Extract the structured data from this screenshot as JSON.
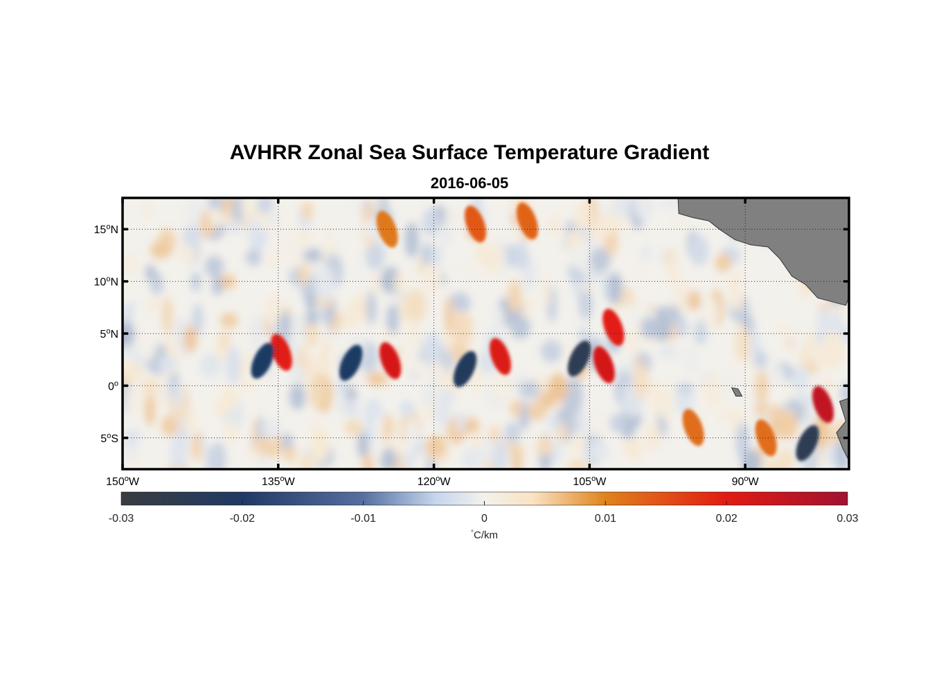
{
  "title": "AVHRR Zonal Sea Surface Temperature Gradient",
  "subtitle": "2016-06-05",
  "map": {
    "lon_range": [
      -150,
      -80
    ],
    "lat_range": [
      -8,
      18
    ],
    "grid": true,
    "lat_ticks": [
      {
        "value": 15,
        "num": "15",
        "hemi": "N"
      },
      {
        "value": 10,
        "num": "10",
        "hemi": "N"
      },
      {
        "value": 5,
        "num": "5",
        "hemi": "N"
      },
      {
        "value": 0,
        "num": "0",
        "hemi": ""
      },
      {
        "value": -5,
        "num": "5",
        "hemi": "S"
      }
    ],
    "lon_ticks": [
      {
        "value": -150,
        "num": "150",
        "hemi": "W"
      },
      {
        "value": -135,
        "num": "135",
        "hemi": "W"
      },
      {
        "value": -120,
        "num": "120",
        "hemi": "W"
      },
      {
        "value": -105,
        "num": "105",
        "hemi": "W"
      },
      {
        "value": -90,
        "num": "90",
        "hemi": "W"
      }
    ],
    "degree_symbol": "o",
    "land_color": "#808080",
    "features": [
      {
        "lon": -134.7,
        "lat": 3.2,
        "value": 0.02
      },
      {
        "lon": -124.2,
        "lat": 2.4,
        "value": 0.022
      },
      {
        "lon": -113.6,
        "lat": 2.8,
        "value": 0.021
      },
      {
        "lon": -103.6,
        "lat": 2.0,
        "value": 0.022
      },
      {
        "lon": -102.7,
        "lat": 5.6,
        "value": 0.02
      },
      {
        "lon": -82.5,
        "lat": -1.8,
        "value": 0.025
      },
      {
        "lon": -136.5,
        "lat": 2.4,
        "value": -0.02
      },
      {
        "lon": -128.0,
        "lat": 2.2,
        "value": -0.02
      },
      {
        "lon": -117.0,
        "lat": 1.6,
        "value": -0.022
      },
      {
        "lon": -106.0,
        "lat": 2.6,
        "value": -0.025
      },
      {
        "lon": -84.0,
        "lat": -5.5,
        "value": -0.025
      },
      {
        "lon": -95.0,
        "lat": -4.0,
        "value": 0.012
      },
      {
        "lon": -88.0,
        "lat": -5.0,
        "value": 0.012
      },
      {
        "lon": -116.0,
        "lat": 15.5,
        "value": 0.014
      },
      {
        "lon": -111.0,
        "lat": 15.8,
        "value": 0.013
      },
      {
        "lon": -124.5,
        "lat": 15.0,
        "value": 0.011
      }
    ]
  },
  "colorbar": {
    "min": -0.03,
    "max": 0.03,
    "ticks": [
      "-0.03",
      "-0.02",
      "-0.01",
      "0",
      "0.01",
      "0.02",
      "0.03"
    ],
    "tick_values": [
      -0.03,
      -0.02,
      -0.01,
      0,
      0.01,
      0.02,
      0.03
    ],
    "unit_symbol": "°",
    "unit_label": "C/km",
    "stops": [
      {
        "value": -0.03,
        "color": "#3a3d42"
      },
      {
        "value": -0.02,
        "color": "#1f3a64"
      },
      {
        "value": -0.01,
        "color": "#5570a0"
      },
      {
        "value": -0.004,
        "color": "#c6d6ee"
      },
      {
        "value": 0,
        "color": "#f3f1ec"
      },
      {
        "value": 0.004,
        "color": "#fae3c2"
      },
      {
        "value": 0.01,
        "color": "#e0821c"
      },
      {
        "value": 0.02,
        "color": "#e21b12"
      },
      {
        "value": 0.03,
        "color": "#a01232"
      }
    ]
  }
}
